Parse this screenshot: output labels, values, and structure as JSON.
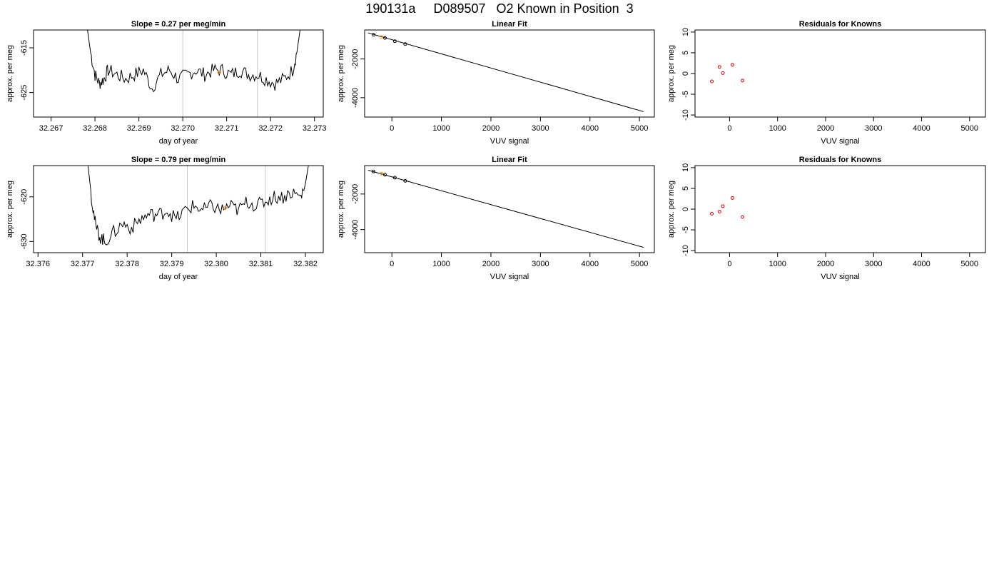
{
  "title": "190131a     D089507   O2 Known in Position  3",
  "colors": {
    "axis": "#000000",
    "trace": "#000000",
    "marker_orange": "#ff9900",
    "marker_red": "#dd0000",
    "vline": "#c8c8c8"
  },
  "chart_data": [
    {
      "type": "line",
      "title": "Slope =  0.27  per meg/min",
      "xlabel": "day of year",
      "ylabel": "approx. per meg",
      "xlim": [
        32.2666,
        32.2732
      ],
      "ylim": [
        -630.5,
        -611
      ],
      "xticks": [
        "32.267",
        "32.268",
        "32.269",
        "32.270",
        "32.271",
        "32.272",
        "32.273"
      ],
      "xtick_values": [
        32.267,
        32.268,
        32.269,
        32.27,
        32.271,
        32.272,
        32.273
      ],
      "yticks": [
        "-625",
        "-615"
      ],
      "ytick_values": [
        -625,
        -615
      ],
      "vlines": [
        32.27,
        32.2717
      ],
      "highlight_points": [
        [
          32.27083,
          -620.5
        ]
      ],
      "trace": {
        "x": [
          32.2678,
          32.2679,
          32.268,
          32.2681,
          32.2682,
          32.2683,
          32.2685,
          32.2687,
          32.2689,
          32.2691,
          32.2693,
          32.2695,
          32.2697,
          32.2699,
          32.2701,
          32.2703,
          32.2705,
          32.2707,
          32.2709,
          32.2711,
          32.2713,
          32.2715,
          32.2717,
          32.2719,
          32.2721,
          32.2723,
          32.2725,
          32.2726,
          32.2727
        ],
        "y": [
          -609,
          -616,
          -621,
          -623,
          -622,
          -620,
          -621,
          -622,
          -621,
          -620,
          -624,
          -621,
          -620,
          -622,
          -621,
          -620,
          -621,
          -620,
          -620,
          -621,
          -620,
          -621,
          -621,
          -622,
          -623,
          -622,
          -620,
          -616,
          -609
        ]
      }
    },
    {
      "type": "line",
      "title": "Linear Fit",
      "xlabel": "VUV signal",
      "ylabel": "approx. per meg",
      "xlim": [
        -550,
        5300
      ],
      "ylim": [
        -5000,
        -500
      ],
      "xticks": [
        "0",
        "1000",
        "2000",
        "3000",
        "4000",
        "5000"
      ],
      "xtick_values": [
        0,
        1000,
        2000,
        3000,
        4000,
        5000
      ],
      "yticks": [
        "-4000",
        "-2000"
      ],
      "ytick_values": [
        -4000,
        -2000
      ],
      "fit_line": [
        [
          -480,
          -650
        ],
        [
          5080,
          -4720
        ]
      ],
      "points": [
        {
          "x": -370,
          "y": -750,
          "color": "black"
        },
        {
          "x": -210,
          "y": -860,
          "color": "orange"
        },
        {
          "x": -140,
          "y": -910,
          "color": "black"
        },
        {
          "x": 60,
          "y": -1080,
          "color": "black"
        },
        {
          "x": 270,
          "y": -1230,
          "color": "black"
        }
      ]
    },
    {
      "type": "scatter",
      "title": "Residuals for Knowns",
      "xlabel": "VUV signal",
      "ylabel": "approx. per meg",
      "xlim": [
        -720,
        5330
      ],
      "ylim": [
        -10.5,
        10.5
      ],
      "xticks": [
        "0",
        "1000",
        "2000",
        "3000",
        "4000",
        "5000"
      ],
      "xtick_values": [
        0,
        1000,
        2000,
        3000,
        4000,
        5000
      ],
      "yticks": [
        "-10",
        "-5",
        "0",
        "5",
        "10"
      ],
      "ytick_values": [
        -10,
        -5,
        0,
        5,
        10
      ],
      "points": [
        {
          "x": -370,
          "y": -1.9
        },
        {
          "x": -210,
          "y": 1.6
        },
        {
          "x": -140,
          "y": 0.1
        },
        {
          "x": 60,
          "y": 2.1
        },
        {
          "x": 270,
          "y": -1.7
        }
      ]
    },
    {
      "type": "line",
      "title": "Slope =  0.79  per meg/min",
      "xlabel": "day of year",
      "ylabel": "approx. per meg",
      "xlim": [
        32.3759,
        32.3824
      ],
      "ylim": [
        -632.5,
        -613
      ],
      "xticks": [
        "32.376",
        "32.377",
        "32.378",
        "32.379",
        "32.380",
        "32.381",
        "32.382"
      ],
      "xtick_values": [
        32.376,
        32.377,
        32.378,
        32.379,
        32.38,
        32.381,
        32.382
      ],
      "yticks": [
        "-630",
        "-620"
      ],
      "ytick_values": [
        -630,
        -620
      ],
      "vlines": [
        32.37935,
        32.3811
      ],
      "highlight_points": [
        [
          32.3802,
          -622.5
        ]
      ],
      "trace": {
        "x": [
          32.3771,
          32.3772,
          32.3773,
          32.3774,
          32.3775,
          32.3777,
          32.3779,
          32.3781,
          32.3783,
          32.3785,
          32.3787,
          32.3789,
          32.3791,
          32.3793,
          32.3795,
          32.3797,
          32.3799,
          32.3801,
          32.3803,
          32.3805,
          32.3807,
          32.3809,
          32.3811,
          32.3813,
          32.3815,
          32.3817,
          32.3819,
          32.382,
          32.3821
        ],
        "y": [
          -611,
          -620,
          -627,
          -629,
          -630,
          -628,
          -626,
          -627,
          -625,
          -624,
          -624,
          -623,
          -625,
          -623,
          -622,
          -623,
          -622,
          -623,
          -622,
          -623,
          -621,
          -622,
          -621,
          -620,
          -620,
          -619,
          -620,
          -617,
          -611
        ]
      }
    },
    {
      "type": "line",
      "title": "Linear Fit",
      "xlabel": "VUV signal",
      "ylabel": "approx. per meg",
      "xlim": [
        -550,
        5300
      ],
      "ylim": [
        -5300,
        -400
      ],
      "xticks": [
        "0",
        "1000",
        "2000",
        "3000",
        "4000",
        "5000"
      ],
      "xtick_values": [
        0,
        1000,
        2000,
        3000,
        4000,
        5000
      ],
      "yticks": [
        "-4000",
        "-2000"
      ],
      "ytick_values": [
        -4000,
        -2000
      ],
      "fit_line": [
        [
          -480,
          -660
        ],
        [
          5080,
          -5000
        ]
      ],
      "points": [
        {
          "x": -370,
          "y": -730,
          "color": "black"
        },
        {
          "x": -210,
          "y": -850,
          "color": "orange"
        },
        {
          "x": -140,
          "y": -910,
          "color": "black"
        },
        {
          "x": 60,
          "y": -1080,
          "color": "black"
        },
        {
          "x": 270,
          "y": -1260,
          "color": "black"
        }
      ]
    },
    {
      "type": "scatter",
      "title": "Residuals for Knowns",
      "xlabel": "VUV signal",
      "ylabel": "approx. per meg",
      "xlim": [
        -720,
        5330
      ],
      "ylim": [
        -10.5,
        10.5
      ],
      "xticks": [
        "0",
        "1000",
        "2000",
        "3000",
        "4000",
        "5000"
      ],
      "xtick_values": [
        0,
        1000,
        2000,
        3000,
        4000,
        5000
      ],
      "yticks": [
        "-10",
        "-5",
        "0",
        "5",
        "10"
      ],
      "ytick_values": [
        -10,
        -5,
        0,
        5,
        10
      ],
      "points": [
        {
          "x": -370,
          "y": -1.1
        },
        {
          "x": -210,
          "y": -0.6
        },
        {
          "x": -140,
          "y": 0.7
        },
        {
          "x": 60,
          "y": 2.7
        },
        {
          "x": 270,
          "y": -1.9
        }
      ]
    }
  ]
}
